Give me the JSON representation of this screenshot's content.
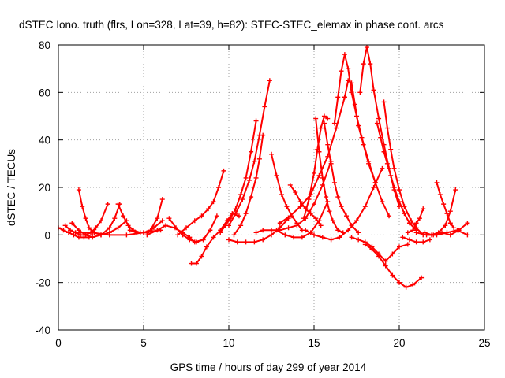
{
  "chart_data": {
    "type": "scatter",
    "title": "dSTEC Iono. truth (flrs, Lon=328, Lat=39, h=82): STEC-STEC_elemax in phase cont. arcs",
    "xlabel": "GPS time / hours of day 299 of year 2014",
    "ylabel": "dSTEC  / TECUs",
    "xlim": [
      0,
      25
    ],
    "ylim": [
      -40,
      80
    ],
    "xticks": [
      0,
      5,
      10,
      15,
      20,
      25
    ],
    "xtick_labels": [
      "0",
      "5",
      "10",
      "15",
      "20",
      "25"
    ],
    "yticks": [
      -40,
      -20,
      0,
      20,
      40,
      60,
      80
    ],
    "ytick_labels": [
      "-40",
      "-20",
      "0",
      "20",
      "40",
      "60",
      "80"
    ],
    "grid": true,
    "marker": "plus",
    "color": "#ff0000",
    "series": [
      {
        "name": "arc1",
        "x": [
          0.0,
          0.3,
          0.6,
          0.9,
          1.2,
          1.5,
          1.8
        ],
        "y": [
          3,
          2,
          1,
          0,
          -1,
          -1,
          -1
        ]
      },
      {
        "name": "arc2",
        "x": [
          0.4,
          0.7,
          1.0,
          1.3,
          1.6,
          1.9,
          2.2,
          2.5,
          2.9
        ],
        "y": [
          4,
          2,
          1,
          0,
          0,
          1,
          3,
          6,
          13
        ]
      },
      {
        "name": "arc3",
        "x": [
          1.2,
          1.4,
          1.6,
          1.8,
          2.1,
          2.5,
          3.0,
          3.5,
          4.0
        ],
        "y": [
          19,
          12,
          7,
          3,
          1,
          0,
          1,
          3,
          6
        ]
      },
      {
        "name": "arc4",
        "x": [
          0.8,
          1.2,
          1.6,
          2.0,
          2.5,
          3.0,
          3.3,
          3.6
        ],
        "y": [
          5,
          2,
          0,
          -1,
          0,
          3,
          7,
          13
        ]
      },
      {
        "name": "arc5",
        "x": [
          3.5,
          3.8,
          4.1,
          4.4,
          4.8,
          5.2,
          5.6,
          6.1
        ],
        "y": [
          13,
          8,
          4,
          2,
          1,
          1,
          3,
          6
        ]
      },
      {
        "name": "arc6",
        "x": [
          1.0,
          2.0,
          3.0,
          4.0,
          5.0,
          6.0
        ],
        "y": [
          1,
          1,
          0,
          0,
          1,
          2
        ]
      },
      {
        "name": "arc7",
        "x": [
          4.2,
          4.6,
          5.0,
          5.4,
          5.8,
          6.1
        ],
        "y": [
          2,
          1,
          1,
          2,
          7,
          15
        ]
      },
      {
        "name": "arc8",
        "x": [
          5.2,
          5.8,
          6.3,
          6.8,
          7.3,
          7.7,
          8.0,
          8.5,
          8.9
        ],
        "y": [
          0,
          2,
          4,
          3,
          1,
          -1,
          -3,
          -2,
          2
        ]
      },
      {
        "name": "arc9",
        "x": [
          6.5,
          6.9,
          7.3,
          7.7,
          8.1,
          8.5,
          8.9,
          9.3
        ],
        "y": [
          7,
          3,
          0,
          -2,
          -3,
          -2,
          2,
          8
        ]
      },
      {
        "name": "arc10",
        "x": [
          7.8,
          8.1,
          8.4,
          8.7,
          9.1,
          9.5,
          9.9,
          10.2,
          10.6
        ],
        "y": [
          -12,
          -12,
          -9,
          -5,
          -1,
          2,
          6,
          9,
          8
        ]
      },
      {
        "name": "arc11",
        "x": [
          7.0,
          7.5,
          8.0,
          8.4,
          8.8,
          9.1,
          9.4,
          9.7
        ],
        "y": [
          0,
          3,
          6,
          8,
          11,
          14,
          20,
          27
        ]
      },
      {
        "name": "arc12",
        "x": [
          9.5,
          9.8,
          10.1,
          10.4,
          10.7,
          11.0,
          11.3,
          11.6
        ],
        "y": [
          1,
          4,
          7,
          11,
          17,
          24,
          35,
          48
        ]
      },
      {
        "name": "arc13",
        "x": [
          10.0,
          10.4,
          10.8,
          11.2,
          11.5,
          11.8,
          12.1,
          12.4
        ],
        "y": [
          4,
          9,
          15,
          23,
          31,
          42,
          54,
          65
        ]
      },
      {
        "name": "arc14",
        "x": [
          10.3,
          10.7,
          11.0,
          11.3,
          11.6,
          11.8,
          12.0
        ],
        "y": [
          0,
          4,
          9,
          16,
          24,
          32,
          42
        ]
      },
      {
        "name": "arc15",
        "x": [
          12.5,
          12.8,
          13.1,
          13.4,
          13.7,
          14.0,
          14.3
        ],
        "y": [
          34,
          25,
          17,
          12,
          8,
          5,
          2
        ]
      },
      {
        "name": "arc16",
        "x": [
          13.6,
          13.9,
          14.2,
          14.5,
          14.8,
          15.1,
          15.4
        ],
        "y": [
          21,
          18,
          14,
          11,
          9,
          7,
          4
        ]
      },
      {
        "name": "arc17",
        "x": [
          11.6,
          12.0,
          12.5,
          13.0,
          13.5,
          14.0,
          14.5,
          15.0,
          15.5,
          16.0
        ],
        "y": [
          1,
          2,
          2,
          2,
          3,
          4,
          7,
          13,
          21,
          31
        ]
      },
      {
        "name": "arc18",
        "x": [
          10.0,
          10.5,
          11.0,
          11.5,
          12.0,
          12.5,
          13.0,
          13.5
        ],
        "y": [
          -2,
          -3,
          -3,
          -3,
          -2,
          0,
          3,
          7
        ]
      },
      {
        "name": "arc19",
        "x": [
          14.4,
          14.7,
          15.0,
          15.2,
          15.4,
          15.6,
          15.8
        ],
        "y": [
          7,
          15,
          26,
          36,
          45,
          50,
          49
        ]
      },
      {
        "name": "arc20",
        "x": [
          15.1,
          15.3,
          15.5,
          15.7,
          15.9,
          16.1,
          16.4,
          16.7
        ],
        "y": [
          49,
          35,
          24,
          16,
          10,
          6,
          2,
          1
        ]
      },
      {
        "name": "arc21",
        "x": [
          15.6,
          15.8,
          16.0,
          16.2,
          16.4,
          16.6,
          16.9,
          17.2,
          17.6
        ],
        "y": [
          47,
          38,
          30,
          22,
          16,
          12,
          8,
          4,
          1
        ]
      },
      {
        "name": "arc22",
        "x": [
          13.0,
          13.6,
          14.2,
          14.8,
          15.3,
          15.8,
          16.3,
          16.8
        ],
        "y": [
          5,
          8,
          12,
          17,
          25,
          33,
          45,
          58
        ]
      },
      {
        "name": "arc23",
        "x": [
          16.2,
          16.4,
          16.6,
          16.8,
          17.0,
          17.2,
          17.5,
          17.8,
          18.2,
          18.6
        ],
        "y": [
          47,
          58,
          69,
          76,
          70,
          60,
          50,
          41,
          31,
          22
        ]
      },
      {
        "name": "arc24",
        "x": [
          16.8,
          17.0,
          17.2,
          17.4,
          17.6,
          17.9,
          18.2,
          18.6,
          19.0,
          19.4
        ],
        "y": [
          58,
          65,
          64,
          55,
          46,
          38,
          30,
          22,
          14,
          8
        ]
      },
      {
        "name": "arc25",
        "x": [
          17.7,
          17.9,
          18.1,
          18.3,
          18.5,
          18.8,
          19.1,
          19.4,
          19.7,
          20.0
        ],
        "y": [
          60,
          72,
          79,
          72,
          61,
          49,
          38,
          28,
          19,
          12
        ]
      },
      {
        "name": "arc26",
        "x": [
          18.7,
          18.9,
          19.1,
          19.3,
          19.5,
          19.7,
          20.0,
          20.3,
          20.6,
          21.0
        ],
        "y": [
          47,
          41,
          35,
          30,
          25,
          20,
          14,
          9,
          5,
          2
        ]
      },
      {
        "name": "arc27",
        "x": [
          19.1,
          19.3,
          19.5,
          19.7,
          20.0,
          20.3,
          20.7,
          21.0,
          21.4
        ],
        "y": [
          56,
          45,
          36,
          28,
          19,
          12,
          6,
          3,
          0
        ]
      },
      {
        "name": "arc28",
        "x": [
          18.0,
          18.4,
          18.8,
          19.2,
          19.6,
          20.0,
          20.4,
          20.8,
          21.3
        ],
        "y": [
          -4,
          -6,
          -9,
          -13,
          -17,
          -20,
          -22,
          -21,
          -18
        ]
      },
      {
        "name": "arc29",
        "x": [
          17.2,
          17.6,
          18.0,
          18.4,
          18.8,
          19.2,
          19.6,
          20.0,
          20.5
        ],
        "y": [
          -1,
          -2,
          -3,
          -5,
          -8,
          -11,
          -8,
          -5,
          -4
        ]
      },
      {
        "name": "arc30",
        "x": [
          20.5,
          20.8,
          21.0,
          21.2,
          21.4
        ],
        "y": [
          1,
          2,
          5,
          7,
          11
        ]
      },
      {
        "name": "arc31",
        "x": [
          20.2,
          20.6,
          21.0,
          21.4,
          21.8
        ],
        "y": [
          -1,
          -2,
          -3,
          -3,
          -2
        ]
      },
      {
        "name": "arc32",
        "x": [
          22.2,
          22.4,
          22.6,
          22.8,
          23.0,
          23.2
        ],
        "y": [
          22,
          17,
          13,
          9,
          5,
          3
        ]
      },
      {
        "name": "arc33",
        "x": [
          21.5,
          21.9,
          22.3,
          22.7,
          23.0,
          23.3
        ],
        "y": [
          1,
          0,
          1,
          4,
          10,
          19
        ]
      },
      {
        "name": "arc34",
        "x": [
          22.0,
          22.5,
          23.0,
          23.5,
          24.0
        ],
        "y": [
          0,
          1,
          0,
          2,
          5
        ]
      },
      {
        "name": "arc35",
        "x": [
          21.0,
          21.6,
          22.2,
          22.8,
          23.4,
          24.0
        ],
        "y": [
          1,
          0,
          0,
          1,
          2,
          0
        ]
      },
      {
        "name": "arc36",
        "x": [
          14.5,
          15.0,
          15.5,
          16.0,
          16.5,
          17.0,
          17.5,
          18.0,
          18.5,
          19.0
        ],
        "y": [
          2,
          0,
          -1,
          -2,
          -1,
          2,
          6,
          12,
          20,
          28
        ]
      },
      {
        "name": "arc37",
        "x": [
          12.8,
          13.3,
          13.8,
          14.3,
          14.8,
          15.3,
          15.8
        ],
        "y": [
          2,
          0,
          -1,
          -1,
          1,
          6,
          14
        ]
      }
    ]
  }
}
